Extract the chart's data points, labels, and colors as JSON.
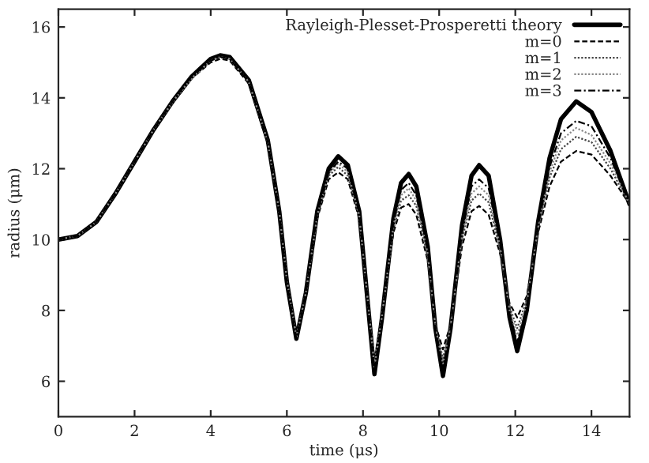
{
  "chart_data": {
    "type": "line",
    "xlabel": "time (μs)",
    "ylabel": "radius (μm)",
    "x": [
      0,
      0.5,
      1,
      1.5,
      2,
      2.5,
      3,
      3.5,
      4,
      4.25,
      4.5,
      5,
      5.5,
      5.8,
      6.0,
      6.25,
      6.5,
      6.8,
      7.1,
      7.35,
      7.6,
      7.9,
      8.1,
      8.3,
      8.5,
      8.8,
      9.0,
      9.2,
      9.4,
      9.7,
      9.9,
      10.1,
      10.3,
      10.6,
      10.85,
      11.05,
      11.3,
      11.6,
      11.85,
      12.05,
      12.3,
      12.6,
      12.9,
      13.2,
      13.6,
      14.0,
      14.5,
      15
    ],
    "series": [
      {
        "name": "Rayleigh-Plesset-Prosperetti theory",
        "color": "#000000",
        "line_style": "solid",
        "values": [
          10,
          10.1,
          10.5,
          11.3,
          12.2,
          13.1,
          13.9,
          14.6,
          15.1,
          15.2,
          15.15,
          14.5,
          12.8,
          10.8,
          8.8,
          7.2,
          8.5,
          10.8,
          12.0,
          12.35,
          12.1,
          10.8,
          8.5,
          6.2,
          7.8,
          10.6,
          11.6,
          11.85,
          11.5,
          9.8,
          7.5,
          6.15,
          7.5,
          10.4,
          11.8,
          12.1,
          11.8,
          10.0,
          7.8,
          6.85,
          8.0,
          10.5,
          12.3,
          13.4,
          13.9,
          13.6,
          12.5,
          11.0
        ]
      },
      {
        "name": "m=0",
        "color": "#000000",
        "line_style": "dashed",
        "values": [
          10,
          10.1,
          10.5,
          11.3,
          12.2,
          13.1,
          13.85,
          14.55,
          15.0,
          15.1,
          15.05,
          14.4,
          12.7,
          10.8,
          8.9,
          7.3,
          8.5,
          10.6,
          11.7,
          11.9,
          11.7,
          10.6,
          8.6,
          6.6,
          7.9,
          10.2,
          10.9,
          11.0,
          10.7,
          9.4,
          7.6,
          6.9,
          7.6,
          9.8,
          10.8,
          10.95,
          10.7,
          9.6,
          8.2,
          7.8,
          8.4,
          10.2,
          11.5,
          12.2,
          12.5,
          12.4,
          11.8,
          11.0
        ]
      },
      {
        "name": "m=1",
        "color": "#444444",
        "line_style": "dotted",
        "values": [
          10,
          10.1,
          10.5,
          11.3,
          12.2,
          13.1,
          13.85,
          14.55,
          15.05,
          15.15,
          15.1,
          14.45,
          12.75,
          10.8,
          8.85,
          7.25,
          8.5,
          10.65,
          11.8,
          12.05,
          11.8,
          10.65,
          8.55,
          6.5,
          7.85,
          10.3,
          11.1,
          11.25,
          10.95,
          9.5,
          7.55,
          6.65,
          7.55,
          10.0,
          11.1,
          11.3,
          11.05,
          9.7,
          8.1,
          7.5,
          8.3,
          10.3,
          11.75,
          12.55,
          12.9,
          12.75,
          12.0,
          11.0
        ]
      },
      {
        "name": "m=2",
        "color": "#888888",
        "line_style": "dotted",
        "values": [
          10,
          10.1,
          10.5,
          11.3,
          12.2,
          13.1,
          13.9,
          14.55,
          15.05,
          15.15,
          15.1,
          14.45,
          12.75,
          10.8,
          8.85,
          7.25,
          8.5,
          10.7,
          11.85,
          12.15,
          11.9,
          10.7,
          8.55,
          6.4,
          7.85,
          10.4,
          11.25,
          11.45,
          11.1,
          9.6,
          7.55,
          6.5,
          7.55,
          10.1,
          11.3,
          11.5,
          11.25,
          9.8,
          8.0,
          7.3,
          8.2,
          10.35,
          11.9,
          12.8,
          13.15,
          12.95,
          12.15,
          11.0
        ]
      },
      {
        "name": "m=3",
        "color": "#000000",
        "line_style": "dashdot",
        "values": [
          10,
          10.1,
          10.5,
          11.3,
          12.2,
          13.1,
          13.9,
          14.6,
          15.05,
          15.15,
          15.1,
          14.45,
          12.75,
          10.8,
          8.8,
          7.2,
          8.5,
          10.75,
          11.9,
          12.2,
          12.0,
          10.75,
          8.55,
          6.3,
          7.8,
          10.5,
          11.4,
          11.6,
          11.25,
          9.7,
          7.5,
          6.35,
          7.5,
          10.2,
          11.5,
          11.7,
          11.45,
          9.9,
          7.9,
          7.1,
          8.1,
          10.4,
          12.05,
          13.0,
          13.35,
          13.2,
          12.3,
          11.0
        ]
      }
    ],
    "xlim": [
      0,
      15
    ],
    "ylim": [
      5,
      16.5
    ],
    "xticks": [
      0,
      2,
      4,
      6,
      8,
      10,
      12,
      14
    ],
    "yticks": [
      6,
      8,
      10,
      12,
      14,
      16
    ],
    "legend": "top right",
    "grid": false,
    "marker": "none"
  }
}
